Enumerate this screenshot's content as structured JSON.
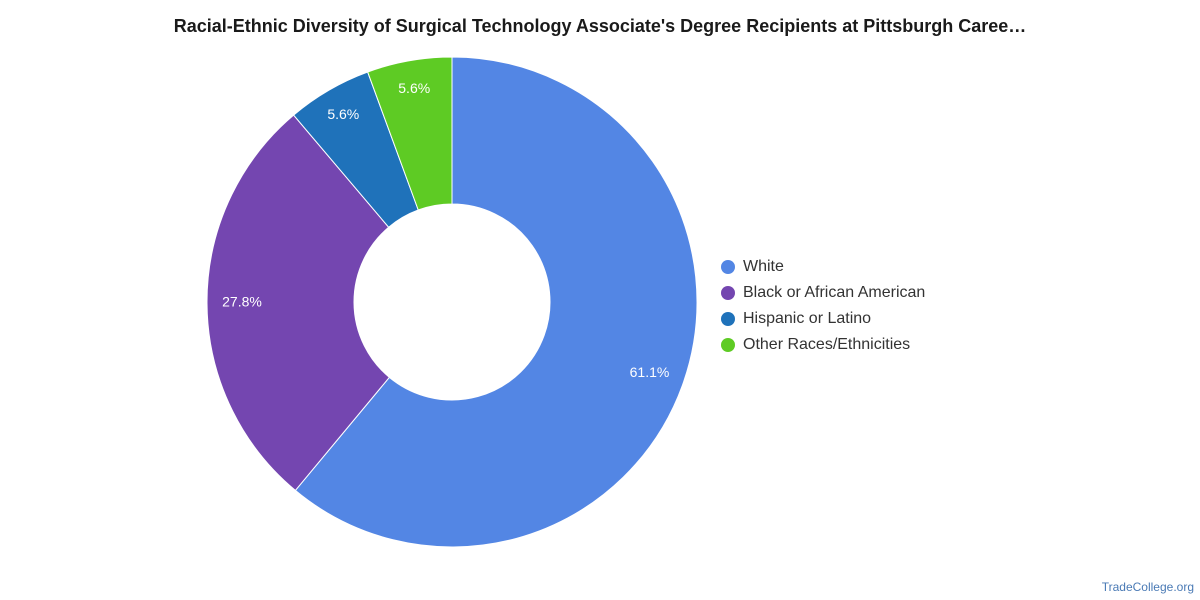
{
  "chart_data": {
    "type": "pie",
    "title": "Racial-Ethnic Diversity of Surgical Technology Associate's Degree Recipients at Pittsburgh Caree…",
    "categories": [
      "White",
      "Black or African American",
      "Hispanic or Latino",
      "Other Races/Ethnicities"
    ],
    "values": [
      61.1,
      27.8,
      5.6,
      5.6
    ],
    "labels": [
      "61.1%",
      "27.8%",
      "5.6%",
      "5.6%"
    ],
    "colors": [
      "#5386e4",
      "#7446b0",
      "#1f72ba",
      "#5ecb24"
    ],
    "donut": true,
    "legend_position": "right"
  },
  "watermark": "TradeCollege.org"
}
